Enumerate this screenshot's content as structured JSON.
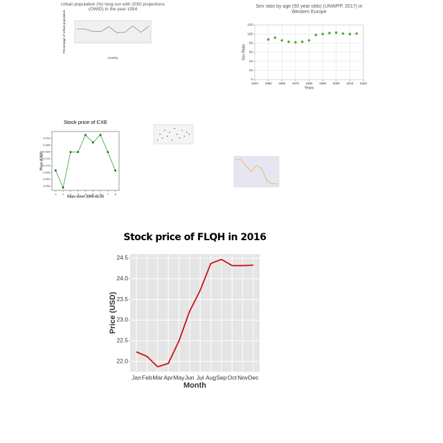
{
  "chart_data": [
    {
      "type": "line",
      "title": "Urban population (%) long-run with 2050 projections (OWID) in the year 1954",
      "x_label": "country",
      "y_label": "Percentage of urban population",
      "categories": [
        null,
        null,
        null,
        null,
        null,
        null,
        null,
        null,
        null,
        null
      ],
      "values": [
        62,
        63,
        52,
        51,
        74,
        46,
        48,
        76,
        48,
        75
      ],
      "color": "#888888",
      "ylim": [
        0,
        100
      ]
    },
    {
      "type": "scatter",
      "title": "Sex ratio by age (50 year olds) (UNWPP, 2017) in Western Europe",
      "x_label": "Years",
      "y_label": "Sex Ratio",
      "x": [
        1950,
        1955,
        1960,
        1965,
        1970,
        1975,
        1980,
        1985,
        1990,
        1995,
        2000,
        2005,
        2010,
        2015
      ],
      "values": [
        88,
        92,
        86,
        83,
        82,
        83,
        86,
        98,
        100,
        102,
        103,
        101,
        100,
        101
      ],
      "color": "#5aa832",
      "xlim": [
        1940,
        2020
      ],
      "ylim": [
        0,
        120
      ],
      "xticks": [
        1940,
        1950,
        1960,
        1970,
        1980,
        1990,
        2000,
        2010,
        2020
      ],
      "yticks": [
        0,
        20,
        40,
        60,
        80,
        100,
        120
      ],
      "grid": true
    },
    {
      "type": "line",
      "title": "Stock price of CXE",
      "x_label": "Days since 2005-02-25",
      "y_label": "Price (USD)",
      "x": [
        0,
        1,
        2,
        3,
        4,
        5,
        6,
        7,
        8
      ],
      "values": [
        4.2665,
        4.254,
        4.28,
        4.28,
        4.2925,
        4.287,
        4.2925,
        4.28,
        4.2665
      ],
      "color": "#3cb043",
      "marker_color": "#1a5c1a",
      "xlim": [
        -0.5,
        8.5
      ],
      "ylim": [
        4.252,
        4.295
      ],
      "xticks": [
        0,
        1,
        2,
        3,
        4,
        5,
        6,
        7,
        8
      ],
      "yticks": [
        4.255,
        {
          "value": 4.26,
          "label": "4.260"
        },
        4.265,
        {
          "value": 4.27,
          "label": "4.270"
        },
        4.275,
        {
          "value": 4.28,
          "label": "4.280"
        },
        4.285,
        {
          "value": 4.29,
          "label": "4.290"
        }
      ]
    },
    {
      "type": "scatter",
      "x": [
        1,
        2,
        3,
        4,
        5,
        6,
        7,
        8,
        9,
        10,
        11,
        12,
        13,
        14
      ],
      "values": [
        2,
        5,
        3,
        7,
        4,
        6,
        2,
        8,
        5,
        3,
        7,
        4,
        6,
        5
      ],
      "color": "#444444",
      "xlim": [
        0,
        15
      ],
      "ylim": [
        0,
        10
      ]
    },
    {
      "type": "line",
      "x": [
        0,
        1,
        2,
        3,
        4,
        5,
        6,
        7,
        8
      ],
      "values": [
        9,
        9,
        7,
        5,
        7,
        6,
        2,
        1,
        1
      ],
      "color": "#f4a742",
      "xlim": [
        0,
        8
      ],
      "ylim": [
        0,
        10
      ]
    },
    {
      "type": "line",
      "title": "Stock price of FLQH in 2016",
      "x_label": "Month",
      "y_label": "Price (USD)",
      "categories": [
        "Jan",
        "Feb",
        "Mar",
        "Apr",
        "May",
        "Jun",
        "Jul",
        "Aug",
        "Sep",
        "Oct",
        "Nov",
        "Dec"
      ],
      "values": [
        22.23,
        22.12,
        21.87,
        21.95,
        22.49,
        23.21,
        23.72,
        24.37,
        24.47,
        24.32,
        24.32,
        24.33
      ],
      "color": "#cc1111",
      "ylim": [
        21.75,
        24.6
      ],
      "yticks": [
        {
          "value": 22,
          "label": "22.0"
        },
        22.5,
        {
          "value": 23,
          "label": "23.0"
        },
        23.5,
        {
          "value": 24,
          "label": "24.0"
        },
        24.5
      ],
      "grid": true
    }
  ]
}
